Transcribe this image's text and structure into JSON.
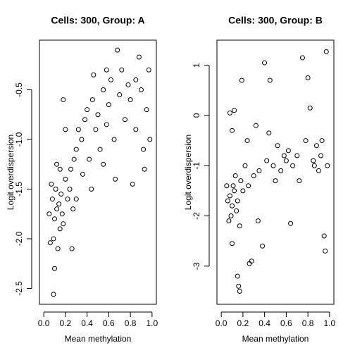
{
  "chart_data": [
    {
      "type": "scatter",
      "title": "Cells: 300, Group: A",
      "x_label": "Mean methylation",
      "y_label": "Logit overdispersion",
      "xlim": [
        -0.04,
        1.04
      ],
      "ylim": [
        -2.66,
        0.0
      ],
      "xticks": [
        {
          "value": 0,
          "label": "0.0"
        },
        0.2,
        0.4,
        0.6,
        0.8,
        {
          "value": 1,
          "label": "1.0"
        }
      ],
      "yticks": [
        -2.5,
        {
          "value": -2,
          "label": "-2.0"
        },
        -1.5,
        {
          "value": -1,
          "label": "-1.0"
        },
        -0.5
      ],
      "series": [
        {
          "name": "A",
          "color": "#000000",
          "x": [
            0.08,
            0.1,
            0.12,
            0.15,
            0.09,
            0.11,
            0.14,
            0.17,
            0.07,
            0.13,
            0.16,
            0.2,
            0.18,
            0.1,
            0.09,
            0.06,
            0.22,
            0.25,
            0.28,
            0.3,
            0.24,
            0.27,
            0.32,
            0.35,
            0.38,
            0.4,
            0.42,
            0.45,
            0.48,
            0.5,
            0.52,
            0.55,
            0.58,
            0.6,
            0.62,
            0.65,
            0.68,
            0.7,
            0.72,
            0.75,
            0.78,
            0.8,
            0.82,
            0.85,
            0.88,
            0.9,
            0.92,
            0.95,
            0.97,
            0.98,
            0.18,
            0.2,
            0.26,
            0.15,
            0.3,
            0.36,
            0.44,
            0.55,
            0.66,
            0.93,
            0.46,
            0.58,
            0.85,
            0.12,
            0.05
          ],
          "values": [
            -1.6,
            -1.8,
            -1.7,
            -1.9,
            -2.0,
            -1.5,
            -1.65,
            -1.75,
            -1.45,
            -2.1,
            -1.55,
            -1.4,
            -1.85,
            -2.3,
            -2.56,
            -2.04,
            -1.6,
            -1.3,
            -1.2,
            -1.1,
            -1.5,
            -1.7,
            -0.9,
            -1.0,
            -0.8,
            -0.7,
            -1.2,
            -0.6,
            -0.9,
            -0.75,
            -1.1,
            -0.5,
            -0.85,
            -0.65,
            -0.4,
            -1.0,
            -0.1,
            -0.55,
            -0.3,
            -0.8,
            -0.45,
            -0.6,
            -1.45,
            -0.9,
            -0.17,
            -0.5,
            -1.1,
            -0.7,
            -0.3,
            -1.0,
            -0.6,
            -0.9,
            -2.1,
            -1.3,
            -1.6,
            -1.35,
            -1.5,
            -1.25,
            -1.4,
            -1.3,
            -0.35,
            -0.3,
            -0.4,
            -1.25,
            -1.75
          ]
        }
      ]
    },
    {
      "type": "scatter",
      "title": "Cells: 300, Group: B",
      "x_label": "Mean methylation",
      "y_label": "Logit overdispersion",
      "xlim": [
        -0.04,
        1.04
      ],
      "ylim": [
        -3.76,
        1.5
      ],
      "xticks": [
        {
          "value": 0,
          "label": "0.0"
        },
        0.2,
        0.4,
        0.6,
        0.8,
        {
          "value": 1,
          "label": "1.0"
        }
      ],
      "yticks": [
        -3,
        -2,
        -1,
        0,
        1
      ],
      "series": [
        {
          "name": "B",
          "color": "#000000",
          "x": [
            0.08,
            0.1,
            0.12,
            0.15,
            0.09,
            0.11,
            0.14,
            0.06,
            0.18,
            0.2,
            0.07,
            0.13,
            0.17,
            0.1,
            0.08,
            0.12,
            0.15,
            0.17,
            0.1,
            0.19,
            0.22,
            0.25,
            0.28,
            0.3,
            0.32,
            0.35,
            0.38,
            0.4,
            0.42,
            0.45,
            0.48,
            0.5,
            0.52,
            0.55,
            0.58,
            0.6,
            0.62,
            0.64,
            0.66,
            0.7,
            0.75,
            0.78,
            0.8,
            0.82,
            0.85,
            0.88,
            0.9,
            0.92,
            0.95,
            0.96,
            0.97,
            0.98,
            0.93,
            0.72,
            0.34,
            0.24,
            0.44,
            0.16,
            0.26,
            0.05,
            0.86
          ],
          "values": [
            -1.6,
            -1.8,
            -1.5,
            -1.7,
            -2.0,
            -1.4,
            -1.9,
            -1.7,
            -1.3,
            -1.5,
            -2.1,
            -1.2,
            -2.2,
            -0.3,
            0.05,
            0.1,
            -3.2,
            -3.5,
            -2.55,
            0.7,
            -1.0,
            -1.4,
            -2.9,
            -1.2,
            -0.2,
            -1.1,
            -2.6,
            1.05,
            -0.9,
            0.7,
            -1.0,
            -1.3,
            -0.6,
            -1.1,
            -0.8,
            -0.9,
            -0.7,
            -2.15,
            -1.0,
            -0.8,
            1.15,
            -0.5,
            0.75,
            0.15,
            -0.9,
            -0.6,
            -1.1,
            -0.8,
            -2.4,
            -2.7,
            1.27,
            -1.0,
            -0.5,
            -1.3,
            -2.1,
            -0.5,
            -0.35,
            -3.4,
            -2.95,
            -1.4,
            -1.0
          ]
        }
      ]
    }
  ]
}
